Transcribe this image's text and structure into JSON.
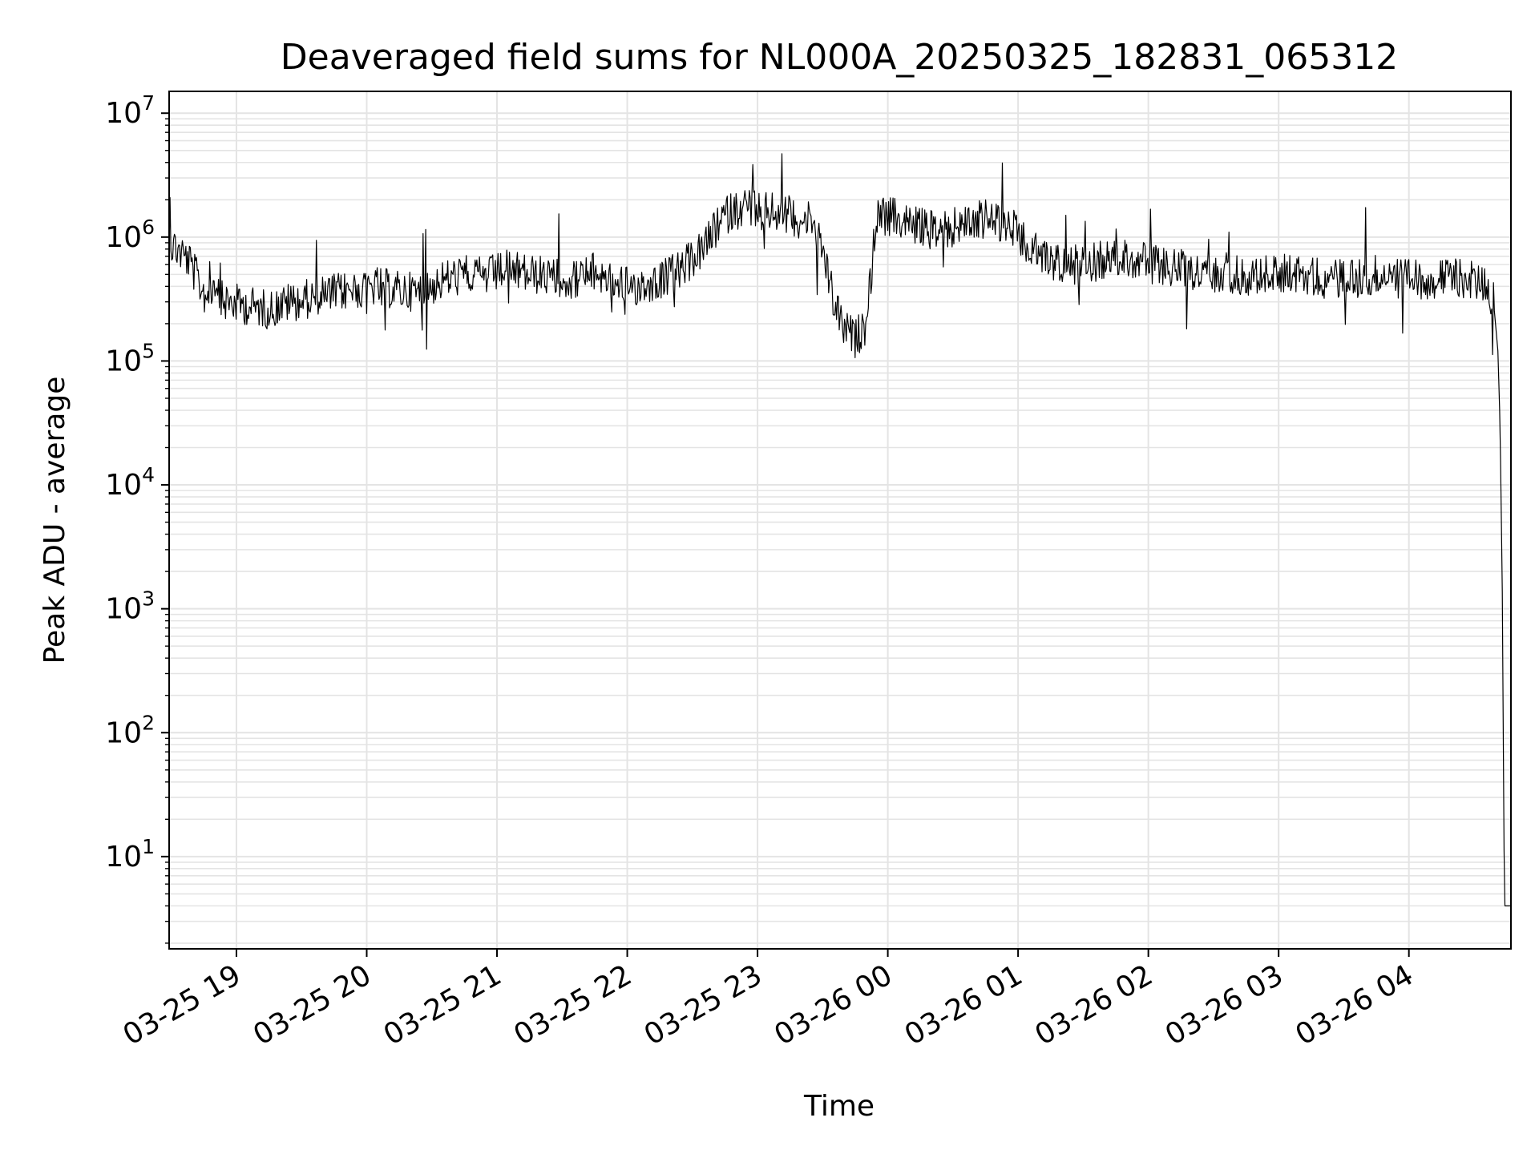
{
  "chart_data": {
    "type": "line",
    "title": "Deaveraged field sums for NL000A_20250325_182831_065312",
    "xlabel": "Time",
    "ylabel": "Peak ADU - average",
    "yscale": "log",
    "ylim": [
      1.8,
      15000000
    ],
    "xlim": [
      "2025-03-25 18:29",
      "2025-03-26 04:47"
    ],
    "grid": true,
    "line_color": "#000000",
    "grid_color": "#e4e4e4",
    "x_ticks": [
      {
        "label": "03-25 19",
        "time": "2025-03-25 19:00"
      },
      {
        "label": "03-25 20",
        "time": "2025-03-25 20:00"
      },
      {
        "label": "03-25 21",
        "time": "2025-03-25 21:00"
      },
      {
        "label": "03-25 22",
        "time": "2025-03-25 22:00"
      },
      {
        "label": "03-25 23",
        "time": "2025-03-25 23:00"
      },
      {
        "label": "03-26 00",
        "time": "2025-03-26 00:00"
      },
      {
        "label": "03-26 01",
        "time": "2025-03-26 01:00"
      },
      {
        "label": "03-26 02",
        "time": "2025-03-26 02:00"
      },
      {
        "label": "03-26 03",
        "time": "2025-03-26 03:00"
      },
      {
        "label": "03-26 04",
        "time": "2025-03-26 04:00"
      }
    ],
    "y_ticks": [
      {
        "base": "10",
        "exp": "1",
        "value": 10
      },
      {
        "base": "10",
        "exp": "2",
        "value": 100
      },
      {
        "base": "10",
        "exp": "3",
        "value": 1000
      },
      {
        "base": "10",
        "exp": "4",
        "value": 10000
      },
      {
        "base": "10",
        "exp": "5",
        "value": 100000
      },
      {
        "base": "10",
        "exp": "6",
        "value": 1000000
      },
      {
        "base": "10",
        "exp": "7",
        "value": 10000000
      }
    ],
    "series": [
      {
        "x": [
          "2025-03-25 18:29",
          "2025-03-25 18:33",
          "2025-03-25 18:38",
          "2025-03-25 18:45",
          "2025-03-25 18:55",
          "2025-03-25 19:05",
          "2025-03-25 19:15",
          "2025-03-25 19:25",
          "2025-03-25 19:35",
          "2025-03-25 19:45",
          "2025-03-25 19:55",
          "2025-03-25 20:05",
          "2025-03-25 20:15",
          "2025-03-25 20:25",
          "2025-03-25 20:35",
          "2025-03-25 20:45",
          "2025-03-25 20:55",
          "2025-03-25 21:05",
          "2025-03-25 21:15",
          "2025-03-25 21:25",
          "2025-03-25 21:35",
          "2025-03-25 21:45",
          "2025-03-25 21:55",
          "2025-03-25 22:05",
          "2025-03-25 22:15",
          "2025-03-25 22:25",
          "2025-03-25 22:35",
          "2025-03-25 22:45",
          "2025-03-25 22:55",
          "2025-03-25 23:05",
          "2025-03-25 23:15",
          "2025-03-25 23:25",
          "2025-03-25 23:30",
          "2025-03-25 23:35",
          "2025-03-25 23:40",
          "2025-03-25 23:45",
          "2025-03-25 23:50",
          "2025-03-25 23:55",
          "2025-03-26 00:05",
          "2025-03-26 00:15",
          "2025-03-26 00:25",
          "2025-03-26 00:35",
          "2025-03-26 00:45",
          "2025-03-26 00:55",
          "2025-03-26 01:05",
          "2025-03-26 01:15",
          "2025-03-26 01:25",
          "2025-03-26 01:35",
          "2025-03-26 01:45",
          "2025-03-26 01:55",
          "2025-03-26 02:05",
          "2025-03-26 02:15",
          "2025-03-26 02:25",
          "2025-03-26 02:35",
          "2025-03-26 02:45",
          "2025-03-26 02:55",
          "2025-03-26 03:05",
          "2025-03-26 03:15",
          "2025-03-26 03:25",
          "2025-03-26 03:35",
          "2025-03-26 03:45",
          "2025-03-26 03:55",
          "2025-03-26 04:05",
          "2025-03-26 04:15",
          "2025-03-26 04:25",
          "2025-03-26 04:35",
          "2025-03-26 04:39",
          "2025-03-26 04:41",
          "2025-03-26 04:42",
          "2025-03-26 04:43",
          "2025-03-26 04:44",
          "2025-03-26 04:45",
          "2025-03-26 04:46",
          "2025-03-26 04:47"
        ],
        "y": [
          900000,
          800000,
          650000,
          350000,
          300000,
          280000,
          260000,
          300000,
          320000,
          350000,
          380000,
          400000,
          370000,
          360000,
          450000,
          500000,
          480000,
          550000,
          500000,
          480000,
          450000,
          520000,
          430000,
          400000,
          450000,
          550000,
          800000,
          1500000,
          1800000,
          1600000,
          1500000,
          1300000,
          800000,
          300000,
          180000,
          150000,
          200000,
          1500000,
          1400000,
          1200000,
          1100000,
          1300000,
          1400000,
          1300000,
          800000,
          650000,
          600000,
          620000,
          700000,
          650000,
          600000,
          550000,
          500000,
          520000,
          480000,
          500000,
          520000,
          480000,
          450000,
          500000,
          480000,
          460000,
          450000,
          470000,
          460000,
          420000,
          300000,
          120000,
          30000,
          1500,
          4,
          4,
          4,
          4
        ]
      }
    ]
  }
}
